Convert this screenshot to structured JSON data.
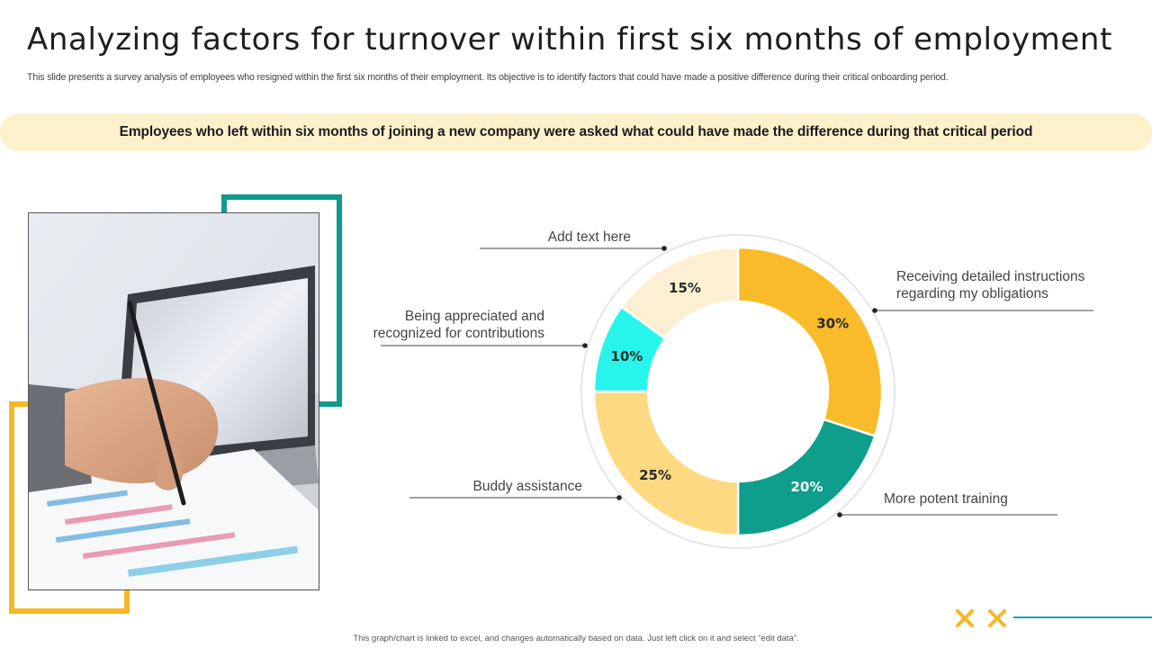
{
  "header": {
    "title": "Analyzing factors for turnover within first six months of employment",
    "subtitle": "This slide presents a survey analysis of employees who resigned within the first six months of their employment. Its objective is to identify factors that could have  made a positive difference during their critical onboarding period."
  },
  "banner": {
    "text": "Employees who left within six months of joining a new company were asked what could have made the difference during that critical period"
  },
  "footer": {
    "note": "This graph/chart is linked to excel, and changes automatically based on data. Just left click on it and select “edit data”."
  },
  "colors": {
    "teal": "#0f9a8c",
    "yellow": "#f5b828",
    "banner_bg": "#fdf1cc"
  },
  "decoration": {
    "icons": [
      "x-mark-icon",
      "x-mark-icon"
    ]
  },
  "chart_data": {
    "type": "pie",
    "style": "donut",
    "categories": [
      "Receiving detailed instructions regarding my obligations",
      "More potent training",
      "Buddy assistance",
      "Being appreciated and recognized for contributions",
      "Add text here"
    ],
    "values": [
      30,
      20,
      25,
      10,
      15
    ],
    "value_labels": [
      "30%",
      "20%",
      "25%",
      "10%",
      "15%"
    ],
    "colors": [
      "#fabb2a",
      "#0e9e8c",
      "#fdd982",
      "#27f5ec",
      "#fdf0d2"
    ],
    "label_lines": [
      [
        "Receiving detailed instructions",
        "regarding my obligations"
      ],
      [
        "More potent training"
      ],
      [
        "Buddy assistance"
      ],
      [
        "Being appreciated and",
        "recognized for contributions"
      ],
      [
        "Add text here"
      ]
    ],
    "start_angle_deg": 0,
    "direction": "clockwise",
    "legend": "none (callout labels)"
  }
}
